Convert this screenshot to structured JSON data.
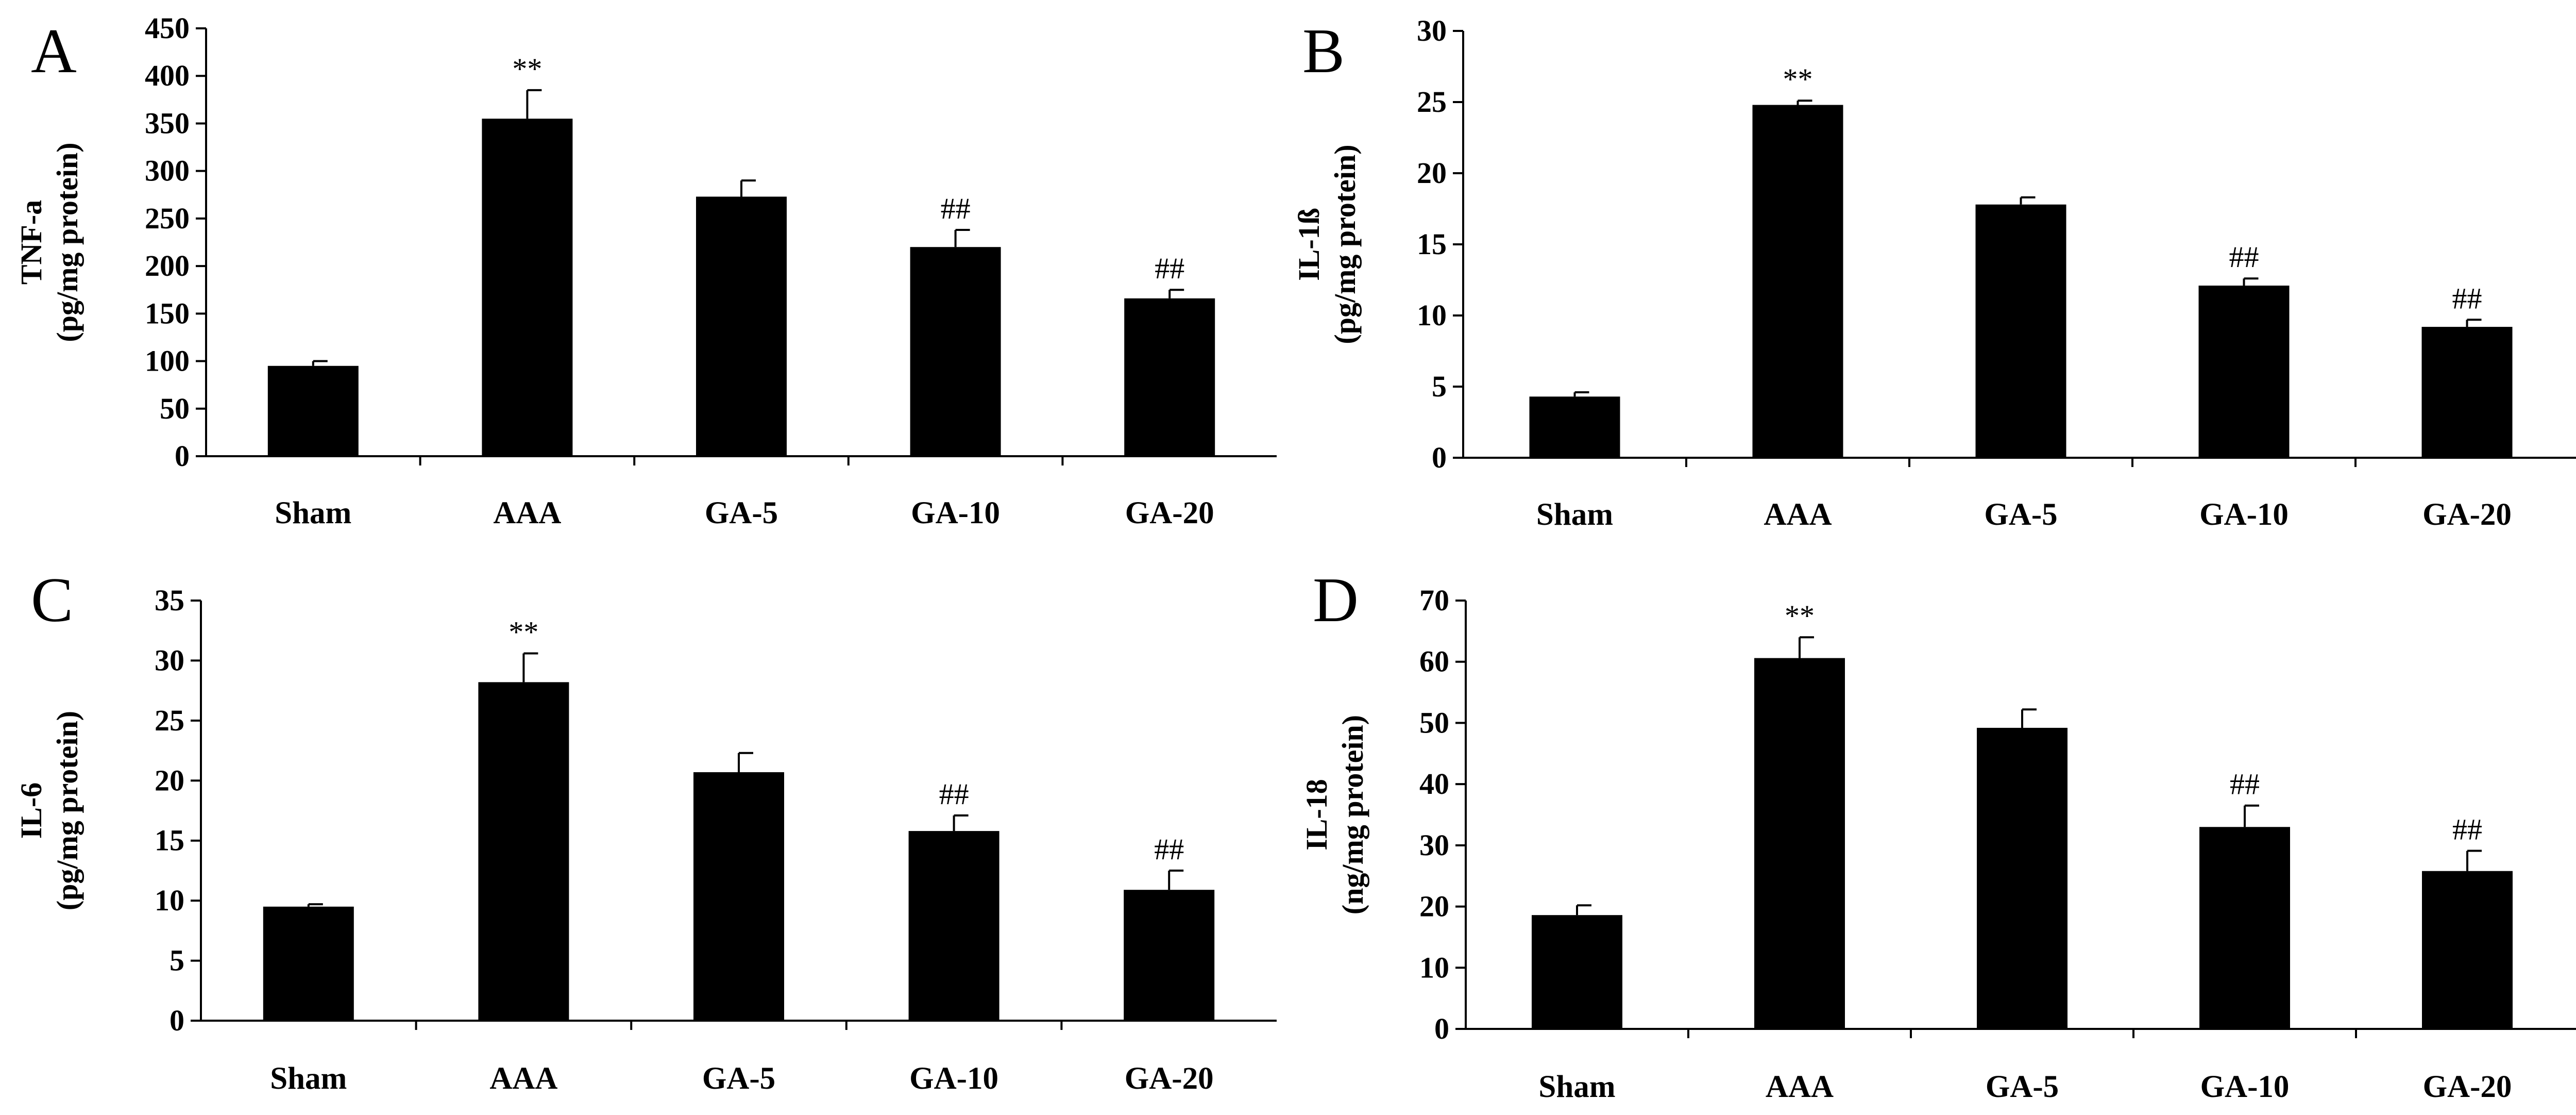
{
  "chart_data": [
    {
      "type": "bar",
      "panel": "A",
      "ylabel_top": "TNF-a",
      "ylabel_bottom": "(pg/mg protein)",
      "categories": [
        "Sham",
        "AAA",
        "GA-5",
        "GA-10",
        "GA-20"
      ],
      "values": [
        95,
        355,
        273,
        220,
        166
      ],
      "errors": [
        5,
        30,
        17,
        18,
        9
      ],
      "annotations": [
        "",
        "**",
        "",
        "##",
        "##"
      ],
      "ylim": [
        0,
        450
      ],
      "yticks": [
        0,
        50,
        100,
        150,
        200,
        250,
        300,
        350,
        400,
        450
      ]
    },
    {
      "type": "bar",
      "panel": "B",
      "ylabel_top": "IL-1ß",
      "ylabel_bottom": "(pg/mg protein)",
      "categories": [
        "Sham",
        "AAA",
        "GA-5",
        "GA-10",
        "GA-20"
      ],
      "values": [
        4.3,
        24.8,
        17.8,
        12.1,
        9.2
      ],
      "errors": [
        0.3,
        0.3,
        0.5,
        0.5,
        0.5
      ],
      "annotations": [
        "",
        "**",
        "",
        "##",
        "##"
      ],
      "ylim": [
        0,
        30
      ],
      "yticks": [
        0,
        5,
        10,
        15,
        20,
        25,
        30
      ]
    },
    {
      "type": "bar",
      "panel": "C",
      "ylabel_top": "IL-6",
      "ylabel_bottom": "(pg/mg protein)",
      "categories": [
        "Sham",
        "AAA",
        "GA-5",
        "GA-10",
        "GA-20"
      ],
      "values": [
        9.5,
        28.2,
        20.7,
        15.8,
        10.9
      ],
      "errors": [
        0.2,
        2.4,
        1.6,
        1.3,
        1.6
      ],
      "annotations": [
        "",
        "**",
        "",
        "##",
        "##"
      ],
      "ylim": [
        0,
        35
      ],
      "yticks": [
        0,
        5,
        10,
        15,
        20,
        25,
        30,
        35
      ]
    },
    {
      "type": "bar",
      "panel": "D",
      "ylabel_top": "IL-18",
      "ylabel_bottom": "(ng/mg protein)",
      "categories": [
        "Sham",
        "AAA",
        "GA-5",
        "GA-10",
        "GA-20"
      ],
      "values": [
        18.6,
        60.6,
        49.2,
        33,
        25.8
      ],
      "errors": [
        1.6,
        3.4,
        3.0,
        3.5,
        3.3
      ],
      "annotations": [
        "",
        "**",
        "",
        "##",
        "##"
      ],
      "ylim": [
        0,
        70
      ],
      "yticks": [
        0,
        10,
        20,
        30,
        40,
        50,
        60,
        70
      ]
    }
  ]
}
